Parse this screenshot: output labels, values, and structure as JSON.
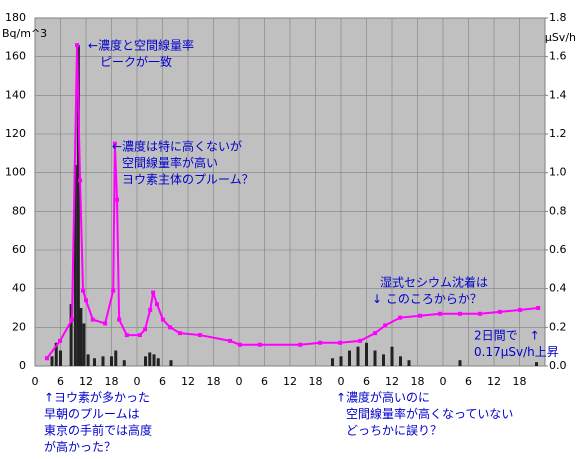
{
  "chart_data": {
    "type": "bar-line",
    "y_label": "Bq/m^3",
    "y2_label": "μSv/h",
    "xlim": [
      0,
      120
    ],
    "xticks": [
      0,
      6,
      12,
      18,
      {
        "value": 24,
        "label": "0"
      },
      {
        "value": 30,
        "label": "6"
      },
      {
        "value": 36,
        "label": "12"
      },
      {
        "value": 42,
        "label": "18"
      },
      {
        "value": 48,
        "label": "0"
      },
      {
        "value": 54,
        "label": "6"
      },
      {
        "value": 60,
        "label": "12"
      },
      {
        "value": 66,
        "label": "18"
      },
      {
        "value": 72,
        "label": "0"
      },
      {
        "value": 78,
        "label": "6"
      },
      {
        "value": 84,
        "label": "12"
      },
      {
        "value": 90,
        "label": "18"
      },
      {
        "value": 96,
        "label": "0"
      },
      {
        "value": 102,
        "label": "6"
      },
      {
        "value": 108,
        "label": "12"
      },
      {
        "value": 114,
        "label": "18"
      }
    ],
    "ylim": [
      0,
      180
    ],
    "yticks": [
      0,
      20,
      40,
      60,
      80,
      100,
      120,
      140,
      160,
      180
    ],
    "y2lim": [
      0,
      1.8
    ],
    "y2ticks": [
      {
        "value": 0,
        "label": "0.0"
      },
      {
        "value": 0.2,
        "label": "0.2"
      },
      {
        "value": 0.4,
        "label": "0.4"
      },
      {
        "value": 0.6,
        "label": "0.6"
      },
      {
        "value": 0.8,
        "label": "0.8"
      },
      {
        "value": 1.0,
        "label": "1.0"
      },
      {
        "value": 1.2,
        "label": "1.2"
      },
      {
        "value": 1.4,
        "label": "1.4"
      },
      {
        "value": 1.6,
        "label": "1.6"
      },
      {
        "value": 1.8,
        "label": "1.8"
      }
    ],
    "grid": true,
    "series": [
      {
        "type": "bar",
        "color": "#222222",
        "x": [
          4,
          5,
          6,
          8.5,
          9.5,
          10.2,
          10.8,
          11.5,
          12.5,
          14,
          16,
          18,
          19,
          21,
          26,
          27,
          28,
          29,
          32,
          70,
          72,
          74,
          76,
          78,
          80,
          82,
          84,
          86,
          88,
          100,
          118
        ],
        "values": [
          5,
          12,
          8,
          32,
          104,
          166,
          30,
          22,
          6,
          4,
          5,
          5,
          8,
          3,
          5,
          7,
          6,
          4,
          3,
          4,
          5,
          8,
          10,
          12,
          8,
          6,
          10,
          5,
          3,
          3,
          2
        ]
      },
      {
        "type": "line",
        "axis": "y2",
        "color": "#ff00ff",
        "x": [
          2.8,
          5.9,
          8.7,
          9.9,
          10.6,
          11.3,
          12,
          13.6,
          16.5,
          18.4,
          18.8,
          19.3,
          19.8,
          21.6,
          24.7,
          25.9,
          27.1,
          27.8,
          28.7,
          30.1,
          31.8,
          34.1,
          38.8,
          45.9,
          48.2,
          52.9,
          62.4,
          67.1,
          71.8,
          76.5,
          80,
          82.4,
          85.9,
          90.6,
          95.3,
          100,
          104.7,
          109.4,
          114.1,
          118.4
        ],
        "values": [
          0.04,
          0.13,
          0.24,
          1.66,
          0.96,
          0.39,
          0.34,
          0.24,
          0.22,
          0.39,
          1.15,
          0.86,
          0.24,
          0.16,
          0.16,
          0.19,
          0.29,
          0.38,
          0.32,
          0.24,
          0.2,
          0.17,
          0.16,
          0.13,
          0.11,
          0.11,
          0.11,
          0.12,
          0.12,
          0.13,
          0.17,
          0.21,
          0.25,
          0.26,
          0.27,
          0.27,
          0.27,
          0.28,
          0.29,
          0.3
        ]
      }
    ],
    "annotations": [
      [
        "←濃度と空間線量率",
        "ピークが一致"
      ],
      [
        "←濃度は特に高くないが",
        "空間線量率が高い",
        "ヨウ素主体のプルーム？"
      ],
      [
        "湿式セシウム沈着は",
        "↓ このころからか？"
      ],
      [
        "2日間で　↑",
        "0.17μSv/h上昇"
      ],
      [
        "↑ヨウ素が多かった",
        "早朝のプルームは",
        "東京の手前では高度",
        "が高かった？"
      ],
      [
        "↑濃度が高いのに",
        "空間線量率が高くなっていない",
        "どっちかに誤り？"
      ]
    ]
  }
}
